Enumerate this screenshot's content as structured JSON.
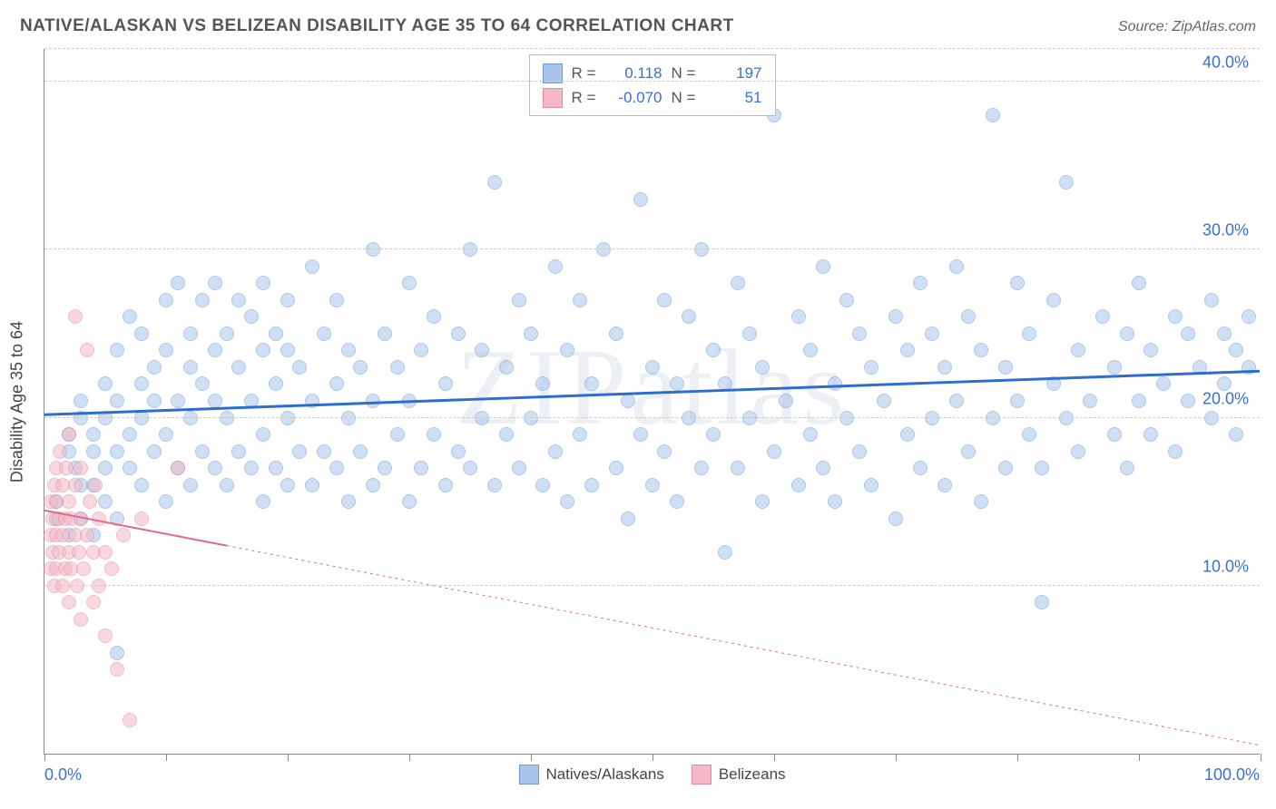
{
  "title": "NATIVE/ALASKAN VS BELIZEAN DISABILITY AGE 35 TO 64 CORRELATION CHART",
  "source": "Source: ZipAtlas.com",
  "ylabel": "Disability Age 35 to 64",
  "watermark": "ZIPatlas",
  "chart": {
    "type": "scatter",
    "xlim": [
      0,
      100
    ],
    "ylim": [
      0,
      42
    ],
    "yticks": [
      10,
      20,
      30,
      40
    ],
    "ytick_labels": [
      "10.0%",
      "20.0%",
      "30.0%",
      "40.0%"
    ],
    "xticks": [
      0,
      10,
      20,
      30,
      40,
      50,
      60,
      70,
      80,
      90,
      100
    ],
    "xtick_label_left": "0.0%",
    "xtick_label_right": "100.0%",
    "background_color": "#ffffff",
    "grid_color": "#cccccc",
    "axis_color": "#888888",
    "marker_radius": 8,
    "marker_opacity": 0.55,
    "series": [
      {
        "name": "Natives/Alaskans",
        "fill": "#a8c5ec",
        "stroke": "#6f9ad6",
        "line_color": "#2d6cd0",
        "line_width": 3,
        "line_dash": "none",
        "R": "0.118",
        "N": "197",
        "trend": {
          "x1": 0,
          "y1": 20.2,
          "x2": 100,
          "y2": 22.8
        },
        "points": [
          [
            1,
            14
          ],
          [
            1,
            15
          ],
          [
            2,
            13
          ],
          [
            2,
            18
          ],
          [
            2,
            19
          ],
          [
            2.5,
            17
          ],
          [
            3,
            14
          ],
          [
            3,
            16
          ],
          [
            3,
            20
          ],
          [
            3,
            21
          ],
          [
            4,
            13
          ],
          [
            4,
            16
          ],
          [
            4,
            18
          ],
          [
            4,
            19
          ],
          [
            5,
            15
          ],
          [
            5,
            17
          ],
          [
            5,
            20
          ],
          [
            5,
            22
          ],
          [
            6,
            14
          ],
          [
            6,
            18
          ],
          [
            6,
            21
          ],
          [
            6,
            24
          ],
          [
            7,
            17
          ],
          [
            7,
            19
          ],
          [
            7,
            26
          ],
          [
            8,
            16
          ],
          [
            8,
            20
          ],
          [
            8,
            22
          ],
          [
            8,
            25
          ],
          [
            9,
            18
          ],
          [
            9,
            21
          ],
          [
            9,
            23
          ],
          [
            10,
            15
          ],
          [
            10,
            19
          ],
          [
            10,
            24
          ],
          [
            10,
            27
          ],
          [
            11,
            17
          ],
          [
            11,
            21
          ],
          [
            11,
            28
          ],
          [
            12,
            16
          ],
          [
            12,
            20
          ],
          [
            12,
            23
          ],
          [
            12,
            25
          ],
          [
            13,
            18
          ],
          [
            13,
            22
          ],
          [
            13,
            27
          ],
          [
            14,
            17
          ],
          [
            14,
            21
          ],
          [
            14,
            24
          ],
          [
            14,
            28
          ],
          [
            15,
            16
          ],
          [
            15,
            20
          ],
          [
            15,
            25
          ],
          [
            16,
            18
          ],
          [
            16,
            23
          ],
          [
            16,
            27
          ],
          [
            17,
            17
          ],
          [
            17,
            21
          ],
          [
            17,
            26
          ],
          [
            18,
            15
          ],
          [
            18,
            19
          ],
          [
            18,
            24
          ],
          [
            18,
            28
          ],
          [
            19,
            17
          ],
          [
            19,
            22
          ],
          [
            19,
            25
          ],
          [
            20,
            16
          ],
          [
            20,
            20
          ],
          [
            20,
            24
          ],
          [
            20,
            27
          ],
          [
            21,
            18
          ],
          [
            21,
            23
          ],
          [
            22,
            16
          ],
          [
            22,
            21
          ],
          [
            22,
            29
          ],
          [
            23,
            18
          ],
          [
            23,
            25
          ],
          [
            24,
            17
          ],
          [
            24,
            22
          ],
          [
            24,
            27
          ],
          [
            25,
            15
          ],
          [
            25,
            20
          ],
          [
            25,
            24
          ],
          [
            26,
            18
          ],
          [
            26,
            23
          ],
          [
            27,
            16
          ],
          [
            27,
            21
          ],
          [
            27,
            30
          ],
          [
            28,
            17
          ],
          [
            28,
            25
          ],
          [
            29,
            19
          ],
          [
            29,
            23
          ],
          [
            30,
            15
          ],
          [
            30,
            21
          ],
          [
            30,
            28
          ],
          [
            31,
            17
          ],
          [
            31,
            24
          ],
          [
            32,
            19
          ],
          [
            32,
            26
          ],
          [
            33,
            16
          ],
          [
            33,
            22
          ],
          [
            34,
            18
          ],
          [
            34,
            25
          ],
          [
            35,
            17
          ],
          [
            35,
            30
          ],
          [
            36,
            20
          ],
          [
            36,
            24
          ],
          [
            37,
            16
          ],
          [
            37,
            34
          ],
          [
            38,
            19
          ],
          [
            38,
            23
          ],
          [
            39,
            17
          ],
          [
            39,
            27
          ],
          [
            40,
            20
          ],
          [
            40,
            25
          ],
          [
            41,
            16
          ],
          [
            41,
            22
          ],
          [
            42,
            18
          ],
          [
            42,
            29
          ],
          [
            43,
            15
          ],
          [
            43,
            24
          ],
          [
            44,
            19
          ],
          [
            44,
            27
          ],
          [
            45,
            16
          ],
          [
            45,
            22
          ],
          [
            46,
            30
          ],
          [
            47,
            17
          ],
          [
            47,
            25
          ],
          [
            48,
            14
          ],
          [
            48,
            21
          ],
          [
            49,
            19
          ],
          [
            49,
            33
          ],
          [
            50,
            16
          ],
          [
            50,
            23
          ],
          [
            51,
            18
          ],
          [
            51,
            27
          ],
          [
            52,
            15
          ],
          [
            52,
            22
          ],
          [
            53,
            20
          ],
          [
            53,
            26
          ],
          [
            54,
            17
          ],
          [
            54,
            30
          ],
          [
            55,
            19
          ],
          [
            55,
            24
          ],
          [
            56,
            12
          ],
          [
            56,
            22
          ],
          [
            57,
            17
          ],
          [
            57,
            28
          ],
          [
            58,
            20
          ],
          [
            58,
            25
          ],
          [
            59,
            15
          ],
          [
            59,
            23
          ],
          [
            60,
            18
          ],
          [
            60,
            38
          ],
          [
            61,
            21
          ],
          [
            62,
            16
          ],
          [
            62,
            26
          ],
          [
            63,
            19
          ],
          [
            63,
            24
          ],
          [
            64,
            17
          ],
          [
            64,
            29
          ],
          [
            65,
            15
          ],
          [
            65,
            22
          ],
          [
            66,
            20
          ],
          [
            66,
            27
          ],
          [
            67,
            18
          ],
          [
            67,
            25
          ],
          [
            68,
            16
          ],
          [
            68,
            23
          ],
          [
            69,
            21
          ],
          [
            70,
            14
          ],
          [
            70,
            26
          ],
          [
            71,
            19
          ],
          [
            71,
            24
          ],
          [
            72,
            17
          ],
          [
            72,
            28
          ],
          [
            73,
            20
          ],
          [
            73,
            25
          ],
          [
            74,
            16
          ],
          [
            74,
            23
          ],
          [
            75,
            21
          ],
          [
            75,
            29
          ],
          [
            76,
            18
          ],
          [
            76,
            26
          ],
          [
            77,
            15
          ],
          [
            77,
            24
          ],
          [
            78,
            20
          ],
          [
            78,
            38
          ],
          [
            79,
            17
          ],
          [
            79,
            23
          ],
          [
            80,
            21
          ],
          [
            80,
            28
          ],
          [
            81,
            19
          ],
          [
            81,
            25
          ],
          [
            82,
            17
          ],
          [
            82,
            9
          ],
          [
            83,
            22
          ],
          [
            83,
            27
          ],
          [
            84,
            20
          ],
          [
            84,
            34
          ],
          [
            85,
            18
          ],
          [
            85,
            24
          ],
          [
            86,
            21
          ],
          [
            87,
            26
          ],
          [
            88,
            19
          ],
          [
            88,
            23
          ],
          [
            89,
            17
          ],
          [
            89,
            25
          ],
          [
            90,
            21
          ],
          [
            90,
            28
          ],
          [
            91,
            19
          ],
          [
            91,
            24
          ],
          [
            92,
            22
          ],
          [
            93,
            18
          ],
          [
            93,
            26
          ],
          [
            94,
            21
          ],
          [
            94,
            25
          ],
          [
            95,
            23
          ],
          [
            96,
            20
          ],
          [
            96,
            27
          ],
          [
            97,
            22
          ],
          [
            97,
            25
          ],
          [
            98,
            19
          ],
          [
            98,
            24
          ],
          [
            99,
            23
          ],
          [
            99,
            26
          ],
          [
            6,
            6
          ]
        ]
      },
      {
        "name": "Belizeans",
        "fill": "#f4b8c6",
        "stroke": "#e787a0",
        "line_color": "#e26b8a",
        "line_width": 2,
        "line_dash": "3,4",
        "line_solid_until_x": 15,
        "R": "-0.070",
        "N": "51",
        "trend": {
          "x1": 0,
          "y1": 14.5,
          "x2": 100,
          "y2": 0.5
        },
        "points": [
          [
            0.5,
            11
          ],
          [
            0.5,
            13
          ],
          [
            0.5,
            15
          ],
          [
            0.7,
            12
          ],
          [
            0.7,
            14
          ],
          [
            0.8,
            10
          ],
          [
            0.8,
            16
          ],
          [
            1,
            11
          ],
          [
            1,
            13
          ],
          [
            1,
            15
          ],
          [
            1,
            17
          ],
          [
            1.2,
            12
          ],
          [
            1.2,
            14
          ],
          [
            1.3,
            18
          ],
          [
            1.5,
            10
          ],
          [
            1.5,
            13
          ],
          [
            1.5,
            16
          ],
          [
            1.7,
            11
          ],
          [
            1.7,
            14
          ],
          [
            1.8,
            17
          ],
          [
            2,
            9
          ],
          [
            2,
            12
          ],
          [
            2,
            15
          ],
          [
            2,
            19
          ],
          [
            2.2,
            11
          ],
          [
            2.2,
            14
          ],
          [
            2.5,
            13
          ],
          [
            2.5,
            16
          ],
          [
            2.5,
            26
          ],
          [
            2.7,
            10
          ],
          [
            2.8,
            12
          ],
          [
            3,
            8
          ],
          [
            3,
            14
          ],
          [
            3,
            17
          ],
          [
            3.2,
            11
          ],
          [
            3.5,
            13
          ],
          [
            3.5,
            24
          ],
          [
            3.7,
            15
          ],
          [
            4,
            9
          ],
          [
            4,
            12
          ],
          [
            4.2,
            16
          ],
          [
            4.5,
            10
          ],
          [
            4.5,
            14
          ],
          [
            5,
            7
          ],
          [
            5,
            12
          ],
          [
            5.5,
            11
          ],
          [
            6,
            5
          ],
          [
            6.5,
            13
          ],
          [
            7,
            2
          ],
          [
            8,
            14
          ],
          [
            11,
            17
          ]
        ]
      }
    ]
  },
  "legend_bottom": [
    {
      "label": "Natives/Alaskans",
      "fill": "#a8c5ec",
      "stroke": "#6f9ad6"
    },
    {
      "label": "Belizeans",
      "fill": "#f4b8c6",
      "stroke": "#e787a0"
    }
  ]
}
